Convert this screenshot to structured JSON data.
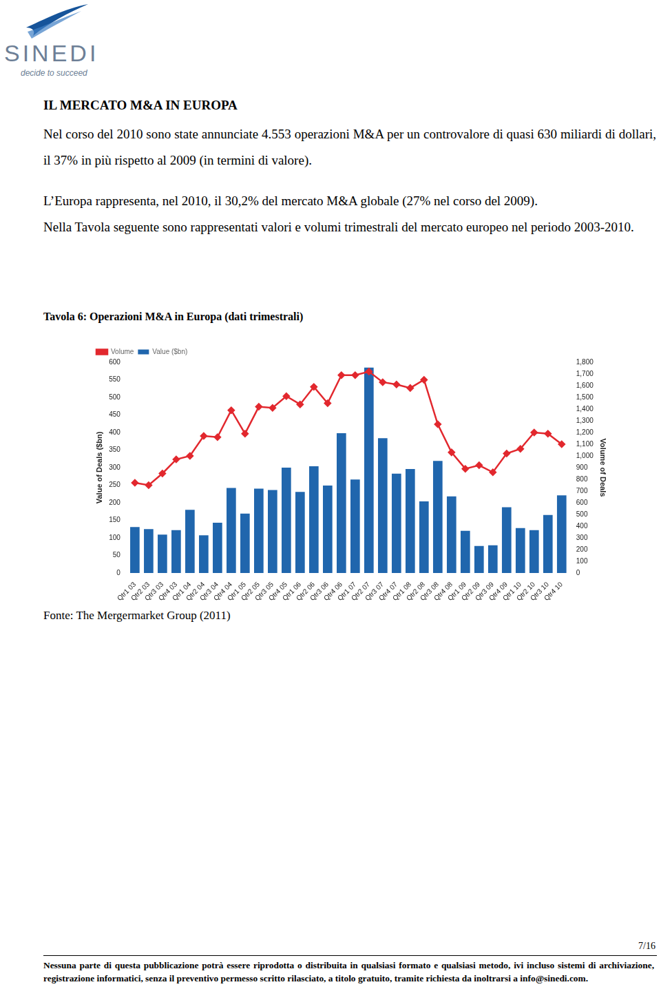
{
  "header": {
    "logo": "SINEDI",
    "tagline": "decide to succeed"
  },
  "heading": "IL MERCATO M&A IN EUROPA",
  "paragraphs": [
    [
      "Nel corso del 2010 sono state annunciate 4.553 operazioni M&A per un controvalore di quasi 630 miliardi di dollari, il 37% in più rispetto al 2009 (in termini di valore)."
    ],
    [
      "L’Europa rappresenta, nel 2010, il 30,2% del mercato M&A globale (27% nel corso del 2009).",
      "Nella Tavola seguente sono rappresentati valori e volumi trimestrali del mercato europeo nel periodo 2003-2010."
    ]
  ],
  "caption": "Tavola 6: Operazioni M&A in Europa (dati trimestrali)",
  "chart_data": {
    "type": "bar",
    "categories": [
      "Qtr1 03",
      "Qtr2 03",
      "Qtr3 03",
      "Qtr4 03",
      "Qtr1 04",
      "Qtr2 04",
      "Qtr3 04",
      "Qtr4 04",
      "Qtr1 05",
      "Qtr2 05",
      "Qtr3 05",
      "Qtr4 05",
      "Qtr1 06",
      "Qtr2 06",
      "Qtr3 06",
      "Qtr4 06",
      "Qtr1 07",
      "Qtr2 07",
      "Qtr3 07",
      "Qtr4 07",
      "Qtr1 08",
      "Qtr2 08",
      "Qtr3 08",
      "Qtr4 08",
      "Qtr1 09",
      "Qtr2 09",
      "Qtr3 09",
      "Qtr4 09",
      "Qtr1 10",
      "Qtr2 10",
      "Qtr3 10",
      "Qtr4 10"
    ],
    "series": [
      {
        "name": "Value ($bn)",
        "type": "bar",
        "color": "#2066ad",
        "values": [
          131,
          125,
          109,
          122,
          180,
          107,
          143,
          242,
          169,
          240,
          236,
          300,
          231,
          304,
          249,
          398,
          266,
          585,
          384,
          283,
          296,
          204,
          319,
          218,
          120,
          77,
          79,
          187,
          128,
          122,
          165,
          221
        ]
      },
      {
        "name": "Volume",
        "type": "line",
        "color": "#e2282e",
        "marker": "diamond",
        "axis": "y2",
        "values": [
          770,
          750,
          850,
          970,
          1000,
          1170,
          1160,
          1390,
          1190,
          1420,
          1410,
          1510,
          1440,
          1590,
          1450,
          1690,
          1690,
          1720,
          1630,
          1610,
          1580,
          1650,
          1270,
          1030,
          890,
          920,
          860,
          1020,
          1060,
          1200,
          1190,
          1100
        ]
      }
    ],
    "ylabel": "Value of Deals ($bn)",
    "y2label": "Volume of Deals",
    "ylim": [
      0,
      600
    ],
    "yticks": [
      0,
      50,
      100,
      150,
      200,
      250,
      300,
      350,
      400,
      450,
      500,
      550,
      600
    ],
    "y2lim": [
      0,
      1800
    ],
    "y2ticks": [
      0,
      100,
      200,
      300,
      400,
      500,
      600,
      700,
      800,
      900,
      {
        "value": 1000,
        "label": "1,000"
      },
      {
        "value": 1100,
        "label": "1,100"
      },
      {
        "value": 1200,
        "label": "1,200"
      },
      {
        "value": 1300,
        "label": "1,300"
      },
      {
        "value": 1400,
        "label": "1,400"
      },
      {
        "value": 1500,
        "label": "1,500"
      },
      {
        "value": 1600,
        "label": "1,600"
      },
      {
        "value": 1700,
        "label": "1,700"
      },
      {
        "value": 1800,
        "label": "1,800"
      }
    ],
    "grid": false,
    "legend": "top left"
  },
  "source": "Fonte: The Mergermarket Group (2011)",
  "page": "7/16",
  "footer": "Nessuna parte di questa pubblicazione potrà essere riprodotta o distribuita in qualsiasi formato e qualsiasi metodo, ivi incluso sistemi di archiviazione, registrazione informatici, senza il preventivo permesso scritto rilasciato, a titolo gratuito, tramite richiesta da inoltrarsi a info@sinedi.com."
}
